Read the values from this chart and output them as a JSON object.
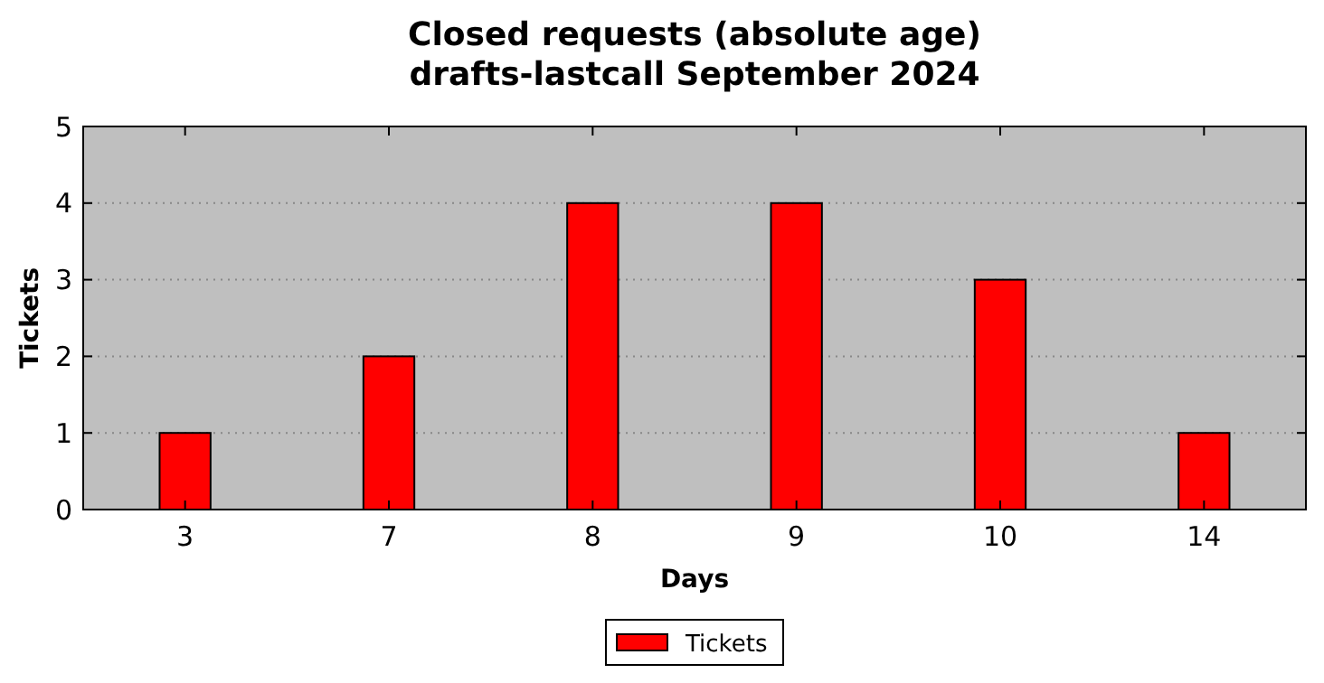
{
  "chart_data": {
    "type": "bar",
    "title": "Closed requests (absolute age)\ndrafts-lastcall September 2024",
    "xlabel": "Days",
    "ylabel": "Tickets",
    "categories": [
      "3",
      "7",
      "8",
      "9",
      "10",
      "14"
    ],
    "series": [
      {
        "name": "Tickets",
        "color": "#ff0000",
        "values": [
          1,
          2,
          4,
          4,
          3,
          1
        ]
      }
    ],
    "ylim": [
      0,
      5
    ],
    "yticks": [
      0,
      1,
      2,
      3,
      4,
      5
    ],
    "grid": "y",
    "legend": "bottom"
  }
}
